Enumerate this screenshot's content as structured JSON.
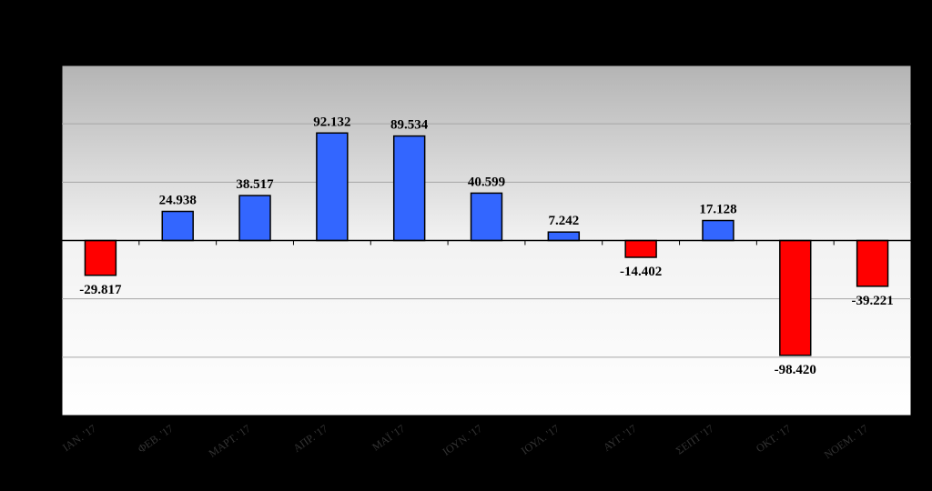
{
  "chart_data": {
    "type": "bar",
    "title": "",
    "xlabel": "",
    "ylabel": "",
    "categories": [
      "ΙΑΝ. '17",
      "ΦΕΒ. '17",
      "ΜΑΡΤ. '17",
      "ΑΠΡ. '17",
      "ΜΑΪ '17",
      "ΙΟΥΝ. '17",
      "ΙΟΥΛ. '17",
      "ΑΥΓ. '17",
      "ΣΕΠΤ '17",
      "ΟΚΤ. '17",
      "ΝΟΕΜ. '17"
    ],
    "values": [
      -29817,
      24938,
      38517,
      92132,
      89534,
      40599,
      7242,
      -14402,
      17128,
      -98420,
      -39221
    ],
    "value_labels": [
      "-29.817",
      "24.938",
      "38.517",
      "92.132",
      "89.534",
      "40.599",
      "7.242",
      "-14.402",
      "17.128",
      "-98.420",
      "-39.221"
    ],
    "ylim": [
      -150000,
      150000
    ],
    "y_gridline_step": 50000,
    "y_tick_labels_visible": false,
    "grid": true,
    "legend": "none",
    "colors": {
      "positive": "#3366FF",
      "negative": "#FF0000",
      "bar_outline": "#000000",
      "background": "#000000",
      "plot_gradient_top": "#B4B4B4",
      "plot_gradient_mid": "#F2F2F2",
      "plot_gradient_bottom": "#FFFFFF",
      "gridline": "#A6A6A6"
    }
  }
}
